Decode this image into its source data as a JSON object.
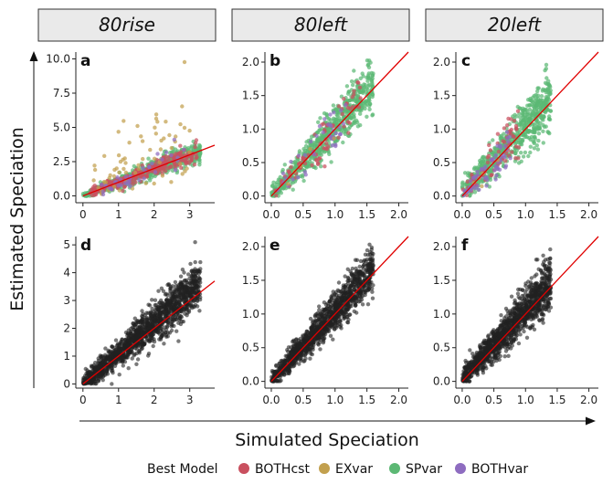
{
  "figure": {
    "xlabel": "Simulated Speciation",
    "ylabel": "Estimated Speciation",
    "legend": {
      "title": "Best Model",
      "position": "bottom",
      "items": [
        {
          "label": "BOTHcst",
          "color": "#c9505f"
        },
        {
          "label": "EXvar",
          "color": "#c2a04e"
        },
        {
          "label": "SPvar",
          "color": "#5cb874"
        },
        {
          "label": "BOTHvar",
          "color": "#8e6cc0"
        }
      ]
    },
    "strips": [
      "80rise",
      "80left",
      "20left"
    ],
    "mono_point_color": "#222222",
    "identity_line_color": "#e00000"
  },
  "chart_data": [
    {
      "panel": "a",
      "type": "scatter",
      "column": "80rise",
      "row": 1,
      "colored_by": "Best Model",
      "xlim": [
        -0.2,
        3.7
      ],
      "ylim": [
        -0.5,
        10.5
      ],
      "xticks": [
        "0",
        "1",
        "2",
        "3"
      ],
      "yticks": [
        "0.0",
        "2.5",
        "5.0",
        "7.5",
        "10.0"
      ],
      "xtick_values": [
        0,
        1,
        2,
        3
      ],
      "ytick_values": [
        0,
        2.5,
        5,
        7.5,
        10
      ],
      "fit_line": [
        [
          0,
          0
        ],
        [
          3.7,
          3.7
        ]
      ],
      "series": [
        {
          "name": "BOTHcst",
          "approx_points": 260,
          "x_range": [
            0.2,
            3.2
          ],
          "y_model": "1.0x",
          "spread": 0.4
        },
        {
          "name": "EXvar",
          "approx_points": 70,
          "x_range": [
            0.3,
            3.0
          ],
          "y_model": "1.5x+0.8",
          "spread": 2.2
        },
        {
          "name": "SPvar",
          "approx_points": 620,
          "x_range": [
            0.0,
            3.3
          ],
          "y_model": "1.0x",
          "spread": 0.45
        },
        {
          "name": "BOTHvar",
          "approx_points": 40,
          "x_range": [
            0.5,
            3.0
          ],
          "y_model": "1.0x",
          "spread": 0.6
        }
      ]
    },
    {
      "panel": "b",
      "type": "scatter",
      "column": "80left",
      "row": 1,
      "colored_by": "Best Model",
      "xlim": [
        -0.1,
        2.15
      ],
      "ylim": [
        -0.1,
        2.15
      ],
      "xticks": [
        "0.0",
        "0.5",
        "1.0",
        "1.5",
        "2.0"
      ],
      "yticks": [
        "0.0",
        "0.5",
        "1.0",
        "1.5",
        "2.0"
      ],
      "xtick_values": [
        0,
        0.5,
        1,
        1.5,
        2
      ],
      "ytick_values": [
        0,
        0.5,
        1,
        1.5,
        2
      ],
      "fit_line": [
        [
          0,
          0
        ],
        [
          2.15,
          2.15
        ]
      ],
      "series": [
        {
          "name": "BOTHcst",
          "approx_points": 80,
          "x_range": [
            0.0,
            1.4
          ],
          "y_model": "1.05x",
          "spread": 0.2
        },
        {
          "name": "EXvar",
          "approx_points": 5,
          "x_range": [
            0.2,
            1.0
          ],
          "y_model": "1.0x",
          "spread": 0.2
        },
        {
          "name": "SPvar",
          "approx_points": 700,
          "x_range": [
            0.0,
            1.6
          ],
          "y_model": "1.05x",
          "spread": 0.2
        },
        {
          "name": "BOTHvar",
          "approx_points": 40,
          "x_range": [
            0.1,
            1.2
          ],
          "y_model": "1.0x",
          "spread": 0.2
        }
      ]
    },
    {
      "panel": "c",
      "type": "scatter",
      "column": "20left",
      "row": 1,
      "colored_by": "Best Model",
      "xlim": [
        -0.1,
        2.15
      ],
      "ylim": [
        -0.1,
        2.15
      ],
      "xticks": [
        "0.0",
        "0.5",
        "1.0",
        "1.5",
        "2.0"
      ],
      "yticks": [
        "0.0",
        "0.5",
        "1.0",
        "1.5",
        "2.0"
      ],
      "xtick_values": [
        0,
        0.5,
        1,
        1.5,
        2
      ],
      "ytick_values": [
        0,
        0.5,
        1,
        1.5,
        2
      ],
      "fit_line": [
        [
          0,
          0
        ],
        [
          2.15,
          2.15
        ]
      ],
      "series": [
        {
          "name": "BOTHcst",
          "approx_points": 70,
          "x_range": [
            0.0,
            0.9
          ],
          "y_model": "1.0x+0.05",
          "spread": 0.2
        },
        {
          "name": "EXvar",
          "approx_points": 5,
          "x_range": [
            0.1,
            0.6
          ],
          "y_model": "1.0x",
          "spread": 0.2
        },
        {
          "name": "SPvar",
          "approx_points": 650,
          "x_range": [
            0.0,
            1.4
          ],
          "y_model": "1.0x+0.05",
          "spread": 0.22
        },
        {
          "name": "BOTHvar",
          "approx_points": 60,
          "x_range": [
            0.0,
            0.8
          ],
          "y_model": "1.0x",
          "spread": 0.15
        }
      ]
    },
    {
      "panel": "d",
      "type": "scatter",
      "column": "80rise",
      "row": 2,
      "xlim": [
        -0.2,
        3.7
      ],
      "ylim": [
        -0.15,
        5.3
      ],
      "xticks": [
        "0",
        "1",
        "2",
        "3"
      ],
      "yticks": [
        "0",
        "1",
        "2",
        "3",
        "4",
        "5"
      ],
      "xtick_values": [
        0,
        1,
        2,
        3
      ],
      "ytick_values": [
        0,
        1,
        2,
        3,
        4,
        5
      ],
      "fit_line": [
        [
          0,
          0
        ],
        [
          3.7,
          3.7
        ]
      ],
      "series": [
        {
          "approx_points": 1500,
          "x_range": [
            0.0,
            3.3
          ],
          "y_model": "1.1x",
          "spread": 0.45
        }
      ]
    },
    {
      "panel": "e",
      "type": "scatter",
      "column": "80left",
      "row": 2,
      "xlim": [
        -0.1,
        2.15
      ],
      "ylim": [
        -0.1,
        2.15
      ],
      "xticks": [
        "0.0",
        "0.5",
        "1.0",
        "1.5",
        "2.0"
      ],
      "yticks": [
        "0.0",
        "0.5",
        "1.0",
        "1.5",
        "2.0"
      ],
      "xtick_values": [
        0,
        0.5,
        1,
        1.5,
        2
      ],
      "ytick_values": [
        0,
        0.5,
        1,
        1.5,
        2
      ],
      "fit_line": [
        [
          0,
          0
        ],
        [
          2.15,
          2.15
        ]
      ],
      "series": [
        {
          "approx_points": 1300,
          "x_range": [
            0.0,
            1.6
          ],
          "y_model": "1.05x",
          "spread": 0.18
        }
      ]
    },
    {
      "panel": "f",
      "type": "scatter",
      "column": "20left",
      "row": 2,
      "xlim": [
        -0.1,
        2.15
      ],
      "ylim": [
        -0.1,
        2.15
      ],
      "xticks": [
        "0.0",
        "0.5",
        "1.0",
        "1.5",
        "2.0"
      ],
      "yticks": [
        "0.0",
        "0.5",
        "1.0",
        "1.5",
        "2.0"
      ],
      "xtick_values": [
        0,
        0.5,
        1,
        1.5,
        2
      ],
      "ytick_values": [
        0,
        0.5,
        1,
        1.5,
        2
      ],
      "fit_line": [
        [
          0,
          0
        ],
        [
          2.15,
          2.15
        ]
      ],
      "series": [
        {
          "approx_points": 1300,
          "x_range": [
            0.0,
            1.4
          ],
          "y_model": "1.0x+0.05",
          "spread": 0.2
        }
      ]
    }
  ]
}
